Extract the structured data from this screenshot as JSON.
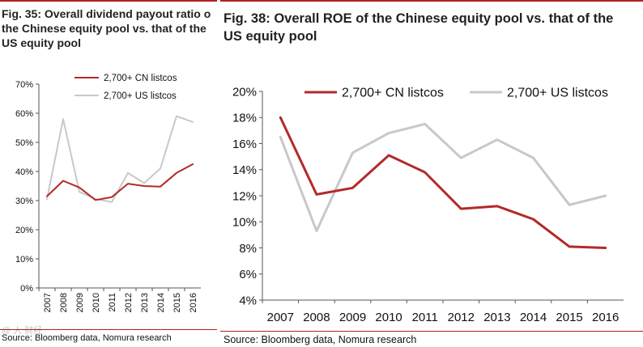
{
  "colors": {
    "cn": "#b22a2a",
    "us": "#c8c8cc",
    "accent": "#b22222",
    "axis": "#555555"
  },
  "left": {
    "title_lines": [
      "Fig. 35: Overall dividend payout ratio o",
      "the Chinese equity pool vs. that of the",
      "US equity pool"
    ],
    "source": "Source: Bloomberg data, Nomura research",
    "watermark": "@ 人 财经"
  },
  "right": {
    "title_lines": [
      "Fig. 38: Overall ROE of the Chinese equity pool vs. that of the",
      "US equity pool"
    ],
    "source": "Source: Bloomberg data, Nomura research"
  },
  "chart_data": [
    {
      "type": "line",
      "title": "Overall dividend payout ratio",
      "categories": [
        "2007",
        "2008",
        "2009",
        "2010",
        "2011",
        "2012",
        "2013",
        "2014",
        "2015",
        "2016"
      ],
      "yticks": [
        "0%",
        "10%",
        "20%",
        "30%",
        "40%",
        "50%",
        "60%",
        "70%"
      ],
      "ylim": [
        0,
        70
      ],
      "legend_position": "top-left",
      "series": [
        {
          "name": "2,700+ CN listcos",
          "color": "#b22a2a",
          "values": [
            31.5,
            36.8,
            34.5,
            30.2,
            31.2,
            35.8,
            35.0,
            34.8,
            39.5,
            42.5
          ]
        },
        {
          "name": "2,700+ US listcos",
          "color": "#c8c8cc",
          "values": [
            30.5,
            58.0,
            33.0,
            30.5,
            29.5,
            39.5,
            36.0,
            41.0,
            59.0,
            57.0
          ]
        }
      ]
    },
    {
      "type": "line",
      "title": "Overall ROE",
      "categories": [
        "2007",
        "2008",
        "2009",
        "2010",
        "2011",
        "2012",
        "2013",
        "2014",
        "2015",
        "2016"
      ],
      "yticks": [
        "4%",
        "6%",
        "8%",
        "10%",
        "12%",
        "14%",
        "16%",
        "18%",
        "20%"
      ],
      "ylim": [
        4,
        20
      ],
      "legend_position": "top",
      "series": [
        {
          "name": "2,700+ CN listcos",
          "color": "#b22a2a",
          "values": [
            18.0,
            12.1,
            12.6,
            15.1,
            13.8,
            11.0,
            11.2,
            10.2,
            8.1,
            8.0
          ]
        },
        {
          "name": "2,700+ US listcos",
          "color": "#c8c8cc",
          "values": [
            16.5,
            9.3,
            15.3,
            16.8,
            17.5,
            14.9,
            16.3,
            14.9,
            11.3,
            12.0
          ]
        }
      ]
    }
  ]
}
